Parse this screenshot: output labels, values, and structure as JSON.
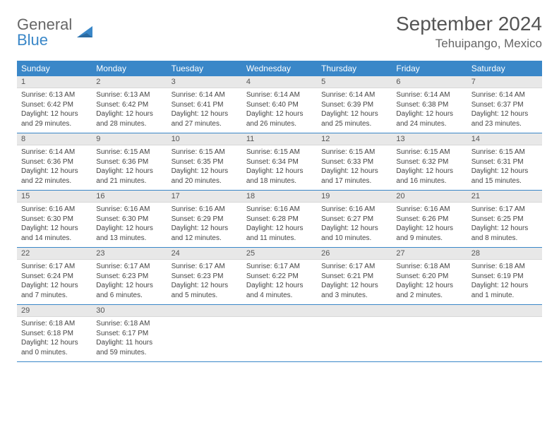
{
  "brand": {
    "g": "General",
    "b": "Blue"
  },
  "title": "September 2024",
  "location": "Tehuipango, Mexico",
  "colors": {
    "header_bg": "#3a87c8",
    "daynum_bg": "#e8e8e8",
    "week_border": "#3a87c8",
    "text": "#444444"
  },
  "weekdays": [
    "Sunday",
    "Monday",
    "Tuesday",
    "Wednesday",
    "Thursday",
    "Friday",
    "Saturday"
  ],
  "weeks": [
    [
      {
        "n": "1",
        "sr": "Sunrise: 6:13 AM",
        "ss": "Sunset: 6:42 PM",
        "d1": "Daylight: 12 hours",
        "d2": "and 29 minutes."
      },
      {
        "n": "2",
        "sr": "Sunrise: 6:13 AM",
        "ss": "Sunset: 6:42 PM",
        "d1": "Daylight: 12 hours",
        "d2": "and 28 minutes."
      },
      {
        "n": "3",
        "sr": "Sunrise: 6:14 AM",
        "ss": "Sunset: 6:41 PM",
        "d1": "Daylight: 12 hours",
        "d2": "and 27 minutes."
      },
      {
        "n": "4",
        "sr": "Sunrise: 6:14 AM",
        "ss": "Sunset: 6:40 PM",
        "d1": "Daylight: 12 hours",
        "d2": "and 26 minutes."
      },
      {
        "n": "5",
        "sr": "Sunrise: 6:14 AM",
        "ss": "Sunset: 6:39 PM",
        "d1": "Daylight: 12 hours",
        "d2": "and 25 minutes."
      },
      {
        "n": "6",
        "sr": "Sunrise: 6:14 AM",
        "ss": "Sunset: 6:38 PM",
        "d1": "Daylight: 12 hours",
        "d2": "and 24 minutes."
      },
      {
        "n": "7",
        "sr": "Sunrise: 6:14 AM",
        "ss": "Sunset: 6:37 PM",
        "d1": "Daylight: 12 hours",
        "d2": "and 23 minutes."
      }
    ],
    [
      {
        "n": "8",
        "sr": "Sunrise: 6:14 AM",
        "ss": "Sunset: 6:36 PM",
        "d1": "Daylight: 12 hours",
        "d2": "and 22 minutes."
      },
      {
        "n": "9",
        "sr": "Sunrise: 6:15 AM",
        "ss": "Sunset: 6:36 PM",
        "d1": "Daylight: 12 hours",
        "d2": "and 21 minutes."
      },
      {
        "n": "10",
        "sr": "Sunrise: 6:15 AM",
        "ss": "Sunset: 6:35 PM",
        "d1": "Daylight: 12 hours",
        "d2": "and 20 minutes."
      },
      {
        "n": "11",
        "sr": "Sunrise: 6:15 AM",
        "ss": "Sunset: 6:34 PM",
        "d1": "Daylight: 12 hours",
        "d2": "and 18 minutes."
      },
      {
        "n": "12",
        "sr": "Sunrise: 6:15 AM",
        "ss": "Sunset: 6:33 PM",
        "d1": "Daylight: 12 hours",
        "d2": "and 17 minutes."
      },
      {
        "n": "13",
        "sr": "Sunrise: 6:15 AM",
        "ss": "Sunset: 6:32 PM",
        "d1": "Daylight: 12 hours",
        "d2": "and 16 minutes."
      },
      {
        "n": "14",
        "sr": "Sunrise: 6:15 AM",
        "ss": "Sunset: 6:31 PM",
        "d1": "Daylight: 12 hours",
        "d2": "and 15 minutes."
      }
    ],
    [
      {
        "n": "15",
        "sr": "Sunrise: 6:16 AM",
        "ss": "Sunset: 6:30 PM",
        "d1": "Daylight: 12 hours",
        "d2": "and 14 minutes."
      },
      {
        "n": "16",
        "sr": "Sunrise: 6:16 AM",
        "ss": "Sunset: 6:30 PM",
        "d1": "Daylight: 12 hours",
        "d2": "and 13 minutes."
      },
      {
        "n": "17",
        "sr": "Sunrise: 6:16 AM",
        "ss": "Sunset: 6:29 PM",
        "d1": "Daylight: 12 hours",
        "d2": "and 12 minutes."
      },
      {
        "n": "18",
        "sr": "Sunrise: 6:16 AM",
        "ss": "Sunset: 6:28 PM",
        "d1": "Daylight: 12 hours",
        "d2": "and 11 minutes."
      },
      {
        "n": "19",
        "sr": "Sunrise: 6:16 AM",
        "ss": "Sunset: 6:27 PM",
        "d1": "Daylight: 12 hours",
        "d2": "and 10 minutes."
      },
      {
        "n": "20",
        "sr": "Sunrise: 6:16 AM",
        "ss": "Sunset: 6:26 PM",
        "d1": "Daylight: 12 hours",
        "d2": "and 9 minutes."
      },
      {
        "n": "21",
        "sr": "Sunrise: 6:17 AM",
        "ss": "Sunset: 6:25 PM",
        "d1": "Daylight: 12 hours",
        "d2": "and 8 minutes."
      }
    ],
    [
      {
        "n": "22",
        "sr": "Sunrise: 6:17 AM",
        "ss": "Sunset: 6:24 PM",
        "d1": "Daylight: 12 hours",
        "d2": "and 7 minutes."
      },
      {
        "n": "23",
        "sr": "Sunrise: 6:17 AM",
        "ss": "Sunset: 6:23 PM",
        "d1": "Daylight: 12 hours",
        "d2": "and 6 minutes."
      },
      {
        "n": "24",
        "sr": "Sunrise: 6:17 AM",
        "ss": "Sunset: 6:23 PM",
        "d1": "Daylight: 12 hours",
        "d2": "and 5 minutes."
      },
      {
        "n": "25",
        "sr": "Sunrise: 6:17 AM",
        "ss": "Sunset: 6:22 PM",
        "d1": "Daylight: 12 hours",
        "d2": "and 4 minutes."
      },
      {
        "n": "26",
        "sr": "Sunrise: 6:17 AM",
        "ss": "Sunset: 6:21 PM",
        "d1": "Daylight: 12 hours",
        "d2": "and 3 minutes."
      },
      {
        "n": "27",
        "sr": "Sunrise: 6:18 AM",
        "ss": "Sunset: 6:20 PM",
        "d1": "Daylight: 12 hours",
        "d2": "and 2 minutes."
      },
      {
        "n": "28",
        "sr": "Sunrise: 6:18 AM",
        "ss": "Sunset: 6:19 PM",
        "d1": "Daylight: 12 hours",
        "d2": "and 1 minute."
      }
    ],
    [
      {
        "n": "29",
        "sr": "Sunrise: 6:18 AM",
        "ss": "Sunset: 6:18 PM",
        "d1": "Daylight: 12 hours",
        "d2": "and 0 minutes."
      },
      {
        "n": "30",
        "sr": "Sunrise: 6:18 AM",
        "ss": "Sunset: 6:17 PM",
        "d1": "Daylight: 11 hours",
        "d2": "and 59 minutes."
      },
      {
        "empty": true
      },
      {
        "empty": true
      },
      {
        "empty": true
      },
      {
        "empty": true
      },
      {
        "empty": true
      }
    ]
  ]
}
